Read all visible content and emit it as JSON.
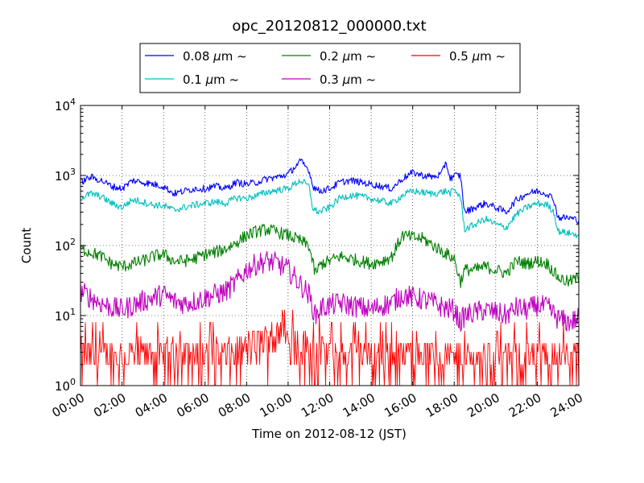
{
  "chart_data": {
    "type": "line",
    "title": "opc_20120812_000000.txt",
    "xlabel": "Time on 2012-08-12 (JST)",
    "ylabel": "Count",
    "x_ticks": [
      "00:00",
      "02:00",
      "04:00",
      "06:00",
      "08:00",
      "10:00",
      "12:00",
      "14:00",
      "16:00",
      "18:00",
      "20:00",
      "22:00",
      "24:00"
    ],
    "y_tick_exponents": [
      0,
      1,
      2,
      3,
      4
    ],
    "y_scale": "log",
    "ylim": [
      1,
      10000
    ],
    "xlim_hours": [
      0,
      24
    ],
    "grid": true,
    "legend_placement": "top, above plot",
    "series": [
      {
        "name_parts": [
          "0.08 ",
          "μ",
          "m ~"
        ],
        "color": "#0000ff",
        "x": [
          0,
          0.5,
          1,
          1.5,
          2,
          2.5,
          3,
          3.5,
          4,
          4.5,
          5,
          5.5,
          6,
          6.5,
          7,
          7.5,
          8,
          8.5,
          9,
          9.5,
          10,
          10.3,
          10.6,
          11,
          11.2,
          11.5,
          12,
          12.5,
          13,
          13.5,
          14,
          14.5,
          15,
          15.5,
          16,
          16.5,
          17,
          17.4,
          17.6,
          17.8,
          18,
          18.3,
          18.5,
          19,
          19.5,
          20,
          20.5,
          21,
          21.5,
          22,
          22.5,
          22.8,
          23,
          23.5,
          24
        ],
        "values": [
          800,
          950,
          850,
          700,
          650,
          850,
          800,
          750,
          700,
          550,
          600,
          650,
          650,
          700,
          650,
          800,
          750,
          800,
          900,
          950,
          1050,
          1300,
          1600,
          1200,
          700,
          600,
          650,
          800,
          850,
          800,
          750,
          700,
          650,
          900,
          1100,
          1000,
          950,
          1050,
          1600,
          900,
          1000,
          1000,
          300,
          350,
          400,
          350,
          300,
          450,
          550,
          600,
          550,
          450,
          250,
          250,
          230
        ]
      },
      {
        "name_parts": [
          "0.1 ",
          "μ",
          "m ~"
        ],
        "color": "#00bfbf",
        "x": [
          0,
          0.5,
          1,
          1.5,
          2,
          2.5,
          3,
          3.5,
          4,
          4.5,
          5,
          5.5,
          6,
          6.5,
          7,
          7.5,
          8,
          8.5,
          9,
          9.5,
          10,
          10.3,
          10.6,
          11,
          11.2,
          11.5,
          12,
          12.5,
          13,
          13.5,
          14,
          14.5,
          15,
          15.5,
          16,
          16.5,
          17,
          17.4,
          17.6,
          17.8,
          18,
          18.3,
          18.5,
          19,
          19.5,
          20,
          20.5,
          21,
          21.5,
          22,
          22.5,
          22.8,
          23,
          23.5,
          24
        ],
        "values": [
          480,
          550,
          500,
          400,
          350,
          450,
          420,
          380,
          370,
          320,
          350,
          380,
          400,
          420,
          400,
          480,
          470,
          520,
          580,
          620,
          650,
          750,
          850,
          700,
          330,
          300,
          350,
          480,
          520,
          500,
          470,
          430,
          400,
          520,
          600,
          570,
          550,
          580,
          600,
          560,
          620,
          500,
          170,
          200,
          240,
          200,
          180,
          280,
          350,
          400,
          380,
          300,
          160,
          150,
          140
        ]
      },
      {
        "name_parts": [
          "0.2 ",
          "μ",
          "m ~"
        ],
        "color": "#008000",
        "x": [
          0,
          0.5,
          1,
          1.5,
          2,
          2.5,
          3,
          3.5,
          4,
          4.5,
          5,
          5.5,
          6,
          6.5,
          7,
          7.5,
          8,
          8.5,
          9,
          9.5,
          10,
          10.5,
          11,
          11.3,
          11.6,
          12,
          12.5,
          13,
          13.5,
          14,
          14.5,
          15,
          15.5,
          16,
          16.5,
          17,
          17.5,
          18,
          18.3,
          18.5,
          19,
          19.5,
          20,
          20.5,
          21,
          21.5,
          22,
          22.5,
          23,
          23.5,
          24
        ],
        "values": [
          90,
          80,
          70,
          55,
          50,
          55,
          60,
          70,
          75,
          60,
          60,
          65,
          75,
          80,
          90,
          110,
          140,
          160,
          170,
          155,
          140,
          120,
          100,
          40,
          55,
          60,
          70,
          65,
          60,
          55,
          60,
          70,
          140,
          130,
          125,
          100,
          80,
          65,
          30,
          45,
          45,
          50,
          45,
          40,
          60,
          55,
          60,
          55,
          35,
          30,
          35
        ]
      },
      {
        "name_parts": [
          "0.3 ",
          "μ",
          "m ~"
        ],
        "color": "#bf00bf",
        "x": [
          0,
          0.5,
          1,
          1.5,
          2,
          2.5,
          3,
          3.5,
          4,
          4.5,
          5,
          5.5,
          6,
          6.5,
          7,
          7.5,
          8,
          8.5,
          9,
          9.5,
          10,
          10.5,
          11,
          11.3,
          11.6,
          12,
          12.5,
          13,
          13.5,
          14,
          14.5,
          15,
          15.5,
          16,
          16.5,
          17,
          17.5,
          18,
          18.3,
          18.5,
          19,
          19.5,
          20,
          20.5,
          21,
          21.5,
          22,
          22.5,
          23,
          23.5,
          24
        ],
        "values": [
          22,
          18,
          15,
          13,
          12,
          14,
          16,
          18,
          20,
          16,
          15,
          16,
          18,
          20,
          22,
          30,
          45,
          55,
          60,
          55,
          45,
          30,
          20,
          10,
          13,
          14,
          15,
          14,
          13,
          12,
          14,
          15,
          20,
          18,
          17,
          15,
          13,
          12,
          8,
          10,
          11,
          12,
          11,
          10,
          13,
          12,
          14,
          13,
          9,
          8,
          9
        ]
      },
      {
        "name_parts": [
          "0.5 ",
          "μ",
          "m ~"
        ],
        "color": "#ff0000",
        "x": [
          0,
          1,
          2,
          3,
          4,
          5,
          6,
          7,
          8,
          8.5,
          9,
          9.5,
          10,
          10.5,
          11,
          12,
          13,
          14,
          15,
          16,
          17,
          18,
          19,
          20,
          21,
          22,
          23,
          24
        ],
        "values": [
          2,
          2,
          2,
          2,
          2,
          2,
          2,
          2,
          2.5,
          3,
          3.5,
          3.5,
          3.5,
          3,
          2.5,
          2,
          2,
          2,
          2,
          2,
          2,
          1.8,
          1.8,
          1.8,
          1.8,
          1.8,
          1.8,
          1.8
        ]
      }
    ]
  }
}
